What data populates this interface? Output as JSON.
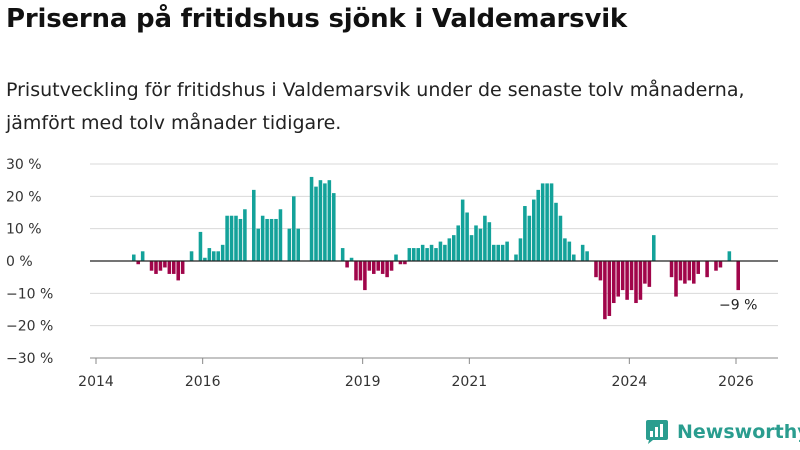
{
  "title": "Priserna på fritidshus sjönk i Valdemarsvik",
  "subtitle": "Prisutveckling för fritidshus i Valdemarsvik under de senaste tolv månaderna, jämfört med tolv månader tidigare.",
  "brand": "Newsworthy",
  "colors": {
    "positive": "#13a29a",
    "negative": "#a0054a",
    "grid": "#d9d9d9",
    "zero": "#222222",
    "brand": "#2a9d8f"
  },
  "chart_data": {
    "type": "bar",
    "unit": "%",
    "ylim": [
      -30,
      30
    ],
    "yticks": [
      30,
      20,
      10,
      0,
      -10,
      -20,
      -30
    ],
    "ytick_labels": [
      "30 %",
      "20 %",
      "10 %",
      "0 %",
      "−10 %",
      "−20 %",
      "−30 %"
    ],
    "xlim": [
      2014.0,
      2026.75
    ],
    "xticks": [
      2014,
      2016,
      2019,
      2021,
      2024,
      2026
    ],
    "xtick_labels": [
      "2014",
      "2016",
      "2019",
      "2021",
      "2024",
      "2026"
    ],
    "series": [
      {
        "year": 2014,
        "values": [
          null,
          null,
          null,
          null,
          null,
          null,
          null,
          null,
          2,
          -1,
          3,
          0
        ]
      },
      {
        "year": 2015,
        "values": [
          -3,
          -4,
          -3,
          -2,
          -4,
          -4,
          -6,
          -4,
          0,
          3,
          0,
          9
        ]
      },
      {
        "year": 2016,
        "values": [
          1,
          4,
          3,
          3,
          5,
          14,
          14,
          14,
          13,
          16,
          0,
          22
        ]
      },
      {
        "year": 2017,
        "values": [
          10,
          14,
          13,
          13,
          13,
          16,
          0,
          10,
          20,
          10,
          0,
          0
        ]
      },
      {
        "year": 2018,
        "values": [
          26,
          23,
          25,
          24,
          25,
          21,
          0,
          4,
          -2,
          1,
          -6,
          -6
        ]
      },
      {
        "year": 2019,
        "values": [
          -9,
          -3,
          -4,
          -3,
          -4,
          -5,
          -3,
          2,
          -1,
          -1,
          4,
          4
        ]
      },
      {
        "year": 2020,
        "values": [
          4,
          5,
          4,
          5,
          4,
          6,
          5,
          7,
          8,
          11,
          19,
          15
        ]
      },
      {
        "year": 2021,
        "values": [
          8,
          11,
          10,
          14,
          12,
          5,
          5,
          5,
          6,
          0,
          2,
          7
        ]
      },
      {
        "year": 2022,
        "values": [
          17,
          14,
          19,
          22,
          24,
          24,
          24,
          18,
          14,
          7,
          6,
          2
        ]
      },
      {
        "year": 2023,
        "values": [
          0,
          5,
          3,
          0,
          -5,
          -6,
          -18,
          -17,
          -13,
          -11,
          -9,
          -12
        ]
      },
      {
        "year": 2024,
        "values": [
          -9,
          -13,
          -12,
          -7,
          -8,
          8,
          0,
          0,
          null,
          -5,
          -11,
          -6
        ]
      },
      {
        "year": 2025,
        "values": [
          -7,
          -6,
          -7,
          -4,
          0,
          -5,
          0,
          -3,
          -2,
          0,
          3,
          0
        ]
      },
      {
        "year": 2026,
        "values": [
          -9
        ]
      }
    ],
    "annotations": [
      {
        "text": "−9 %",
        "year": 2026,
        "month": 1
      }
    ]
  }
}
